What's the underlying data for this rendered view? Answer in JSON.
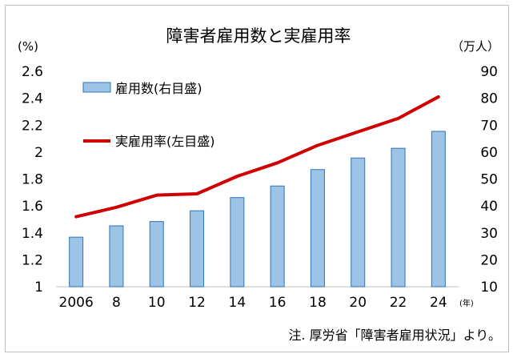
{
  "chart_data": {
    "type": "bar+line",
    "title": "障害者雇用数と実雇用率",
    "left_unit": "(%)",
    "right_unit": "（万人）",
    "x_unit": "(年)",
    "categories": [
      "2006",
      "8",
      "10",
      "12",
      "14",
      "16",
      "18",
      "20",
      "22",
      "24"
    ],
    "series": [
      {
        "name": "雇用数(右目盛)",
        "type": "bar",
        "axis": "right",
        "color": "#9dc3e6",
        "edge_color": "#2e75b6",
        "values": [
          28.4,
          32.6,
          34.2,
          38.2,
          43.1,
          47.4,
          53.5,
          57.8,
          61.4,
          67.7
        ]
      },
      {
        "name": "実雇用率(左目盛)",
        "type": "line",
        "axis": "left",
        "color": "#d00000",
        "values": [
          1.52,
          1.59,
          1.68,
          1.69,
          1.82,
          1.92,
          2.05,
          2.15,
          2.25,
          2.41
        ]
      }
    ],
    "left_axis": {
      "min": 1,
      "max": 2.6,
      "ticks": [
        "1",
        "1.2",
        "1.4",
        "1.6",
        "1.8",
        "2",
        "2.2",
        "2.4",
        "2.6"
      ]
    },
    "right_axis": {
      "min": 10,
      "max": 90,
      "ticks": [
        "10",
        "20",
        "30",
        "40",
        "50",
        "60",
        "70",
        "80",
        "90"
      ]
    },
    "legend_placement": "top-left inside",
    "grid": false,
    "note": "注. 厚労省「障害者雇用状況」より。"
  }
}
